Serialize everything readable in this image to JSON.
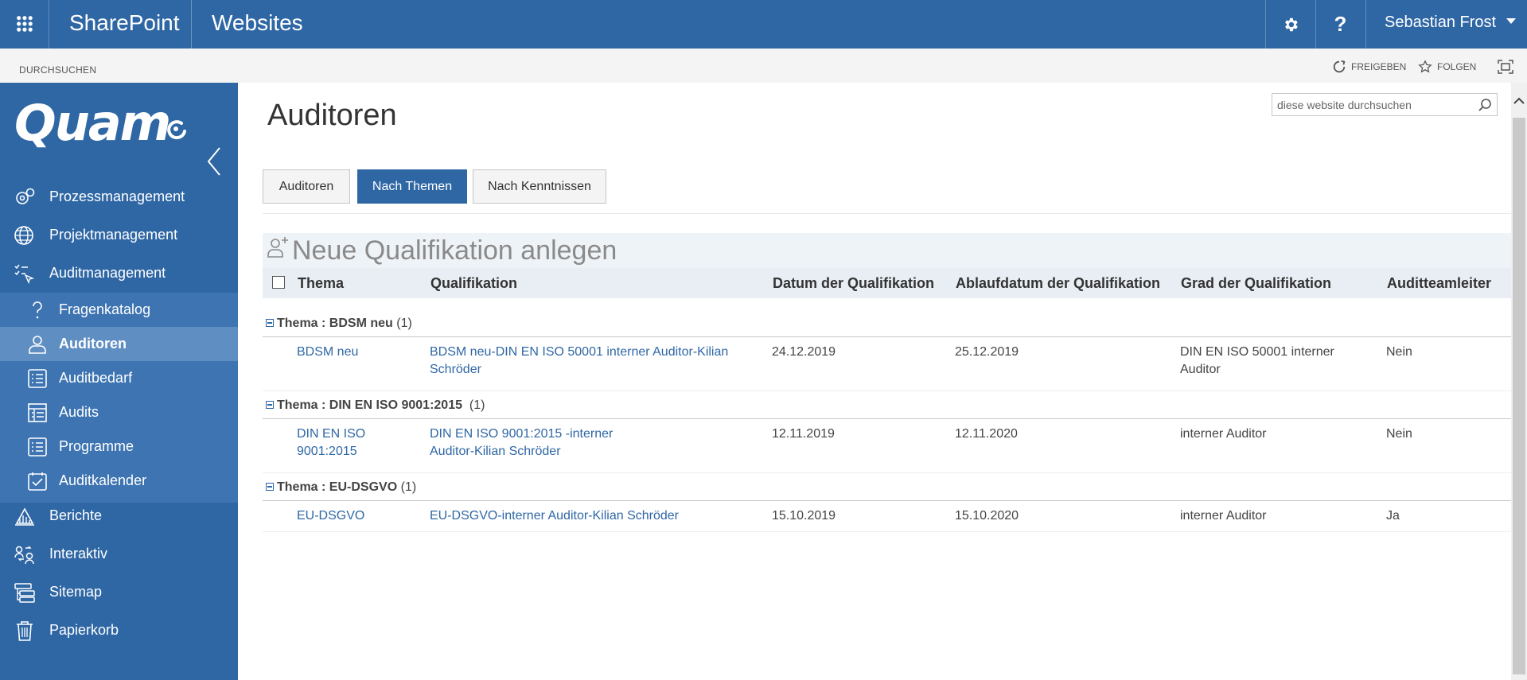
{
  "suite": {
    "brand": "SharePoint",
    "site_title": "Websites",
    "user_name": "Sebastian Frost"
  },
  "ribbon": {
    "browse": "DURCHSUCHEN",
    "share": "FREIGEBEN",
    "follow": "FOLGEN"
  },
  "nav": {
    "logo": "Quam",
    "items": [
      {
        "label": "Prozessmanagement",
        "icon": "gears-icon"
      },
      {
        "label": "Projektmanagement",
        "icon": "globe-icon"
      },
      {
        "label": "Auditmanagement",
        "icon": "checklist-pointer-icon"
      }
    ],
    "sub_items": [
      {
        "label": "Fragenkatalog",
        "icon": "question-icon"
      },
      {
        "label": "Auditoren",
        "icon": "person-icon",
        "active": true
      },
      {
        "label": "Auditbedarf",
        "icon": "list-icon"
      },
      {
        "label": "Audits",
        "icon": "table-icon"
      },
      {
        "label": "Programme",
        "icon": "list-icon"
      },
      {
        "label": "Auditkalender",
        "icon": "calendar-check-icon"
      }
    ],
    "bottom_items": [
      {
        "label": "Berichte",
        "icon": "chart-icon"
      },
      {
        "label": "Interaktiv",
        "icon": "people-exchange-icon"
      },
      {
        "label": "Sitemap",
        "icon": "sitemap-icon"
      },
      {
        "label": "Papierkorb",
        "icon": "trash-icon"
      }
    ]
  },
  "page": {
    "title": "Auditoren",
    "search_placeholder": "diese website durchsuchen"
  },
  "tabs": [
    {
      "label": "Auditoren",
      "active": false
    },
    {
      "label": "Nach Themen",
      "active": true
    },
    {
      "label": "Nach Kenntnissen",
      "active": false
    }
  ],
  "new_item_label": "Neue Qualifikation anlegen",
  "table": {
    "columns": [
      "Thema",
      "Qualifikation",
      "Datum der Qualifikation",
      "Ablaufdatum der Qualifikation",
      "Grad der Qualifikation",
      "Auditteamleiter"
    ],
    "groups": [
      {
        "label_prefix": "Thema : ",
        "name": "BDSM neu",
        "count": "(1)",
        "rows": [
          {
            "thema": "BDSM neu",
            "qualifikation": "BDSM neu-DIN EN ISO 50001 interner Auditor-Kilian Schröder",
            "datum": "24.12.2019",
            "ablauf": "25.12.2019",
            "grad": "DIN EN ISO 50001 interner Auditor",
            "leiter": "Nein"
          }
        ]
      },
      {
        "label_prefix": "Thema : ",
        "name": "DIN EN ISO 9001:2015",
        "count": "(1)",
        "rows": [
          {
            "thema": "DIN EN ISO 9001:2015",
            "qualifikation": "DIN EN ISO 9001:2015 -interner Auditor-Kilian Schröder",
            "datum": "12.11.2019",
            "ablauf": "12.11.2020",
            "grad": "interner Auditor",
            "leiter": "Nein"
          }
        ]
      },
      {
        "label_prefix": "Thema : ",
        "name": "EU-DSGVO",
        "count": "(1)",
        "rows": [
          {
            "thema": "EU-DSGVO",
            "qualifikation": "EU-DSGVO-interner Auditor-Kilian Schröder",
            "datum": "15.10.2019",
            "ablauf": "15.10.2020",
            "grad": "interner Auditor",
            "leiter": "Ja"
          }
        ]
      }
    ]
  },
  "colors": {
    "suite_blue": "#2f67a5",
    "subnav_blue": "#3d74b1",
    "active_blue": "#5f8ec2",
    "link_blue": "#2f67a5"
  }
}
